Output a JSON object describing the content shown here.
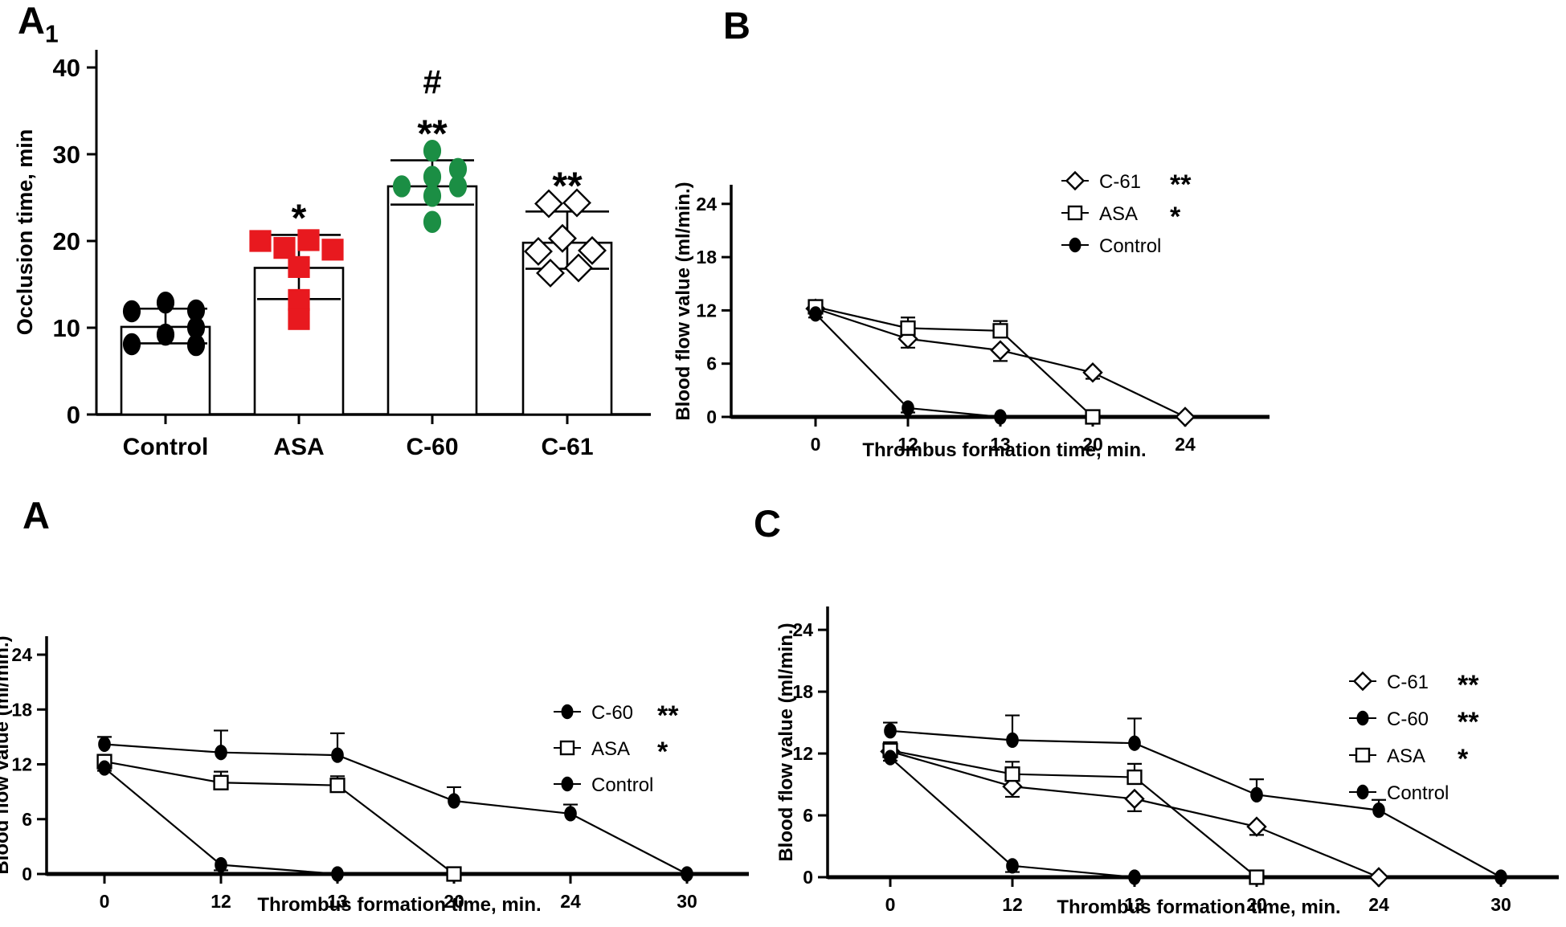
{
  "figure": {
    "background": "#ffffff",
    "panels": {
      "a1": {
        "label": "A",
        "label_sub": "1"
      },
      "b": {
        "label": "B"
      },
      "a": {
        "label": "A"
      },
      "c": {
        "label": "C"
      }
    }
  },
  "colors": {
    "axis": "#000000",
    "control": "#000000",
    "asa": "#e8191f",
    "c60": "#1b8e44",
    "c61_outline": "#000000",
    "open_fill": "#ffffff"
  },
  "chart_data": [
    {
      "id": "a1",
      "type": "bar",
      "ylabel": "Occlusion time, min",
      "yticks": [
        0,
        10,
        20,
        30,
        40
      ],
      "ylim": [
        0,
        42
      ],
      "categories": [
        "Control",
        "ASA",
        "C-60",
        "C-61"
      ],
      "bars": [
        {
          "group": "Control",
          "mean": 10.1,
          "sd_low": 8.2,
          "sd_high": 12.2,
          "marker": "ellipse",
          "fill": "#000000",
          "outline": "#000000",
          "annotations": [],
          "points_offset_value": [
            [
              0,
              12.9
            ],
            [
              -42,
              11.9
            ],
            [
              38,
              12.0
            ],
            [
              38,
              10.0
            ],
            [
              0,
              9.2
            ],
            [
              -42,
              8.1
            ],
            [
              38,
              8.0
            ]
          ]
        },
        {
          "group": "ASA",
          "mean": 16.9,
          "sd_low": 13.3,
          "sd_high": 20.7,
          "marker": "square",
          "fill": "#e8191f",
          "outline": "#e8191f",
          "annotations": [
            "*"
          ],
          "points_offset_value": [
            [
              -48,
              20.0
            ],
            [
              -18,
              19.2
            ],
            [
              12,
              20.1
            ],
            [
              42,
              19.0
            ],
            [
              0,
              17.0
            ],
            [
              0,
              13.2
            ],
            [
              0,
              11.0
            ]
          ]
        },
        {
          "group": "C-60",
          "mean": 26.3,
          "sd_low": 24.2,
          "sd_high": 29.3,
          "marker": "ellipse",
          "fill": "#1b8e44",
          "outline": "#1b8e44",
          "annotations": [
            "#",
            "**"
          ],
          "points_offset_value": [
            [
              0,
              30.4
            ],
            [
              32,
              28.3
            ],
            [
              0,
              27.4
            ],
            [
              -38,
              26.3
            ],
            [
              32,
              26.3
            ],
            [
              0,
              25.2
            ],
            [
              0,
              22.2
            ]
          ]
        },
        {
          "group": "C-61",
          "mean": 19.8,
          "sd_low": 16.8,
          "sd_high": 23.4,
          "marker": "diamond",
          "fill": "#ffffff",
          "outline": "#000000",
          "annotations": [
            "**"
          ],
          "points_offset_value": [
            [
              -23,
              24.3
            ],
            [
              12,
              24.4
            ],
            [
              -6,
              20.3
            ],
            [
              -36,
              18.8
            ],
            [
              31,
              18.9
            ],
            [
              14,
              16.9
            ],
            [
              -21,
              16.3
            ]
          ]
        }
      ]
    },
    {
      "id": "b",
      "type": "line",
      "ylabel": "Blood flow value (ml/min.)",
      "xlabel": "Thrombus formation time, min.",
      "yticks": [
        0,
        6,
        12,
        18,
        24
      ],
      "ylim": [
        0,
        26
      ],
      "xticklabels": [
        "0",
        "12",
        "13",
        "20",
        "24"
      ],
      "legend": [
        {
          "name": "C-61",
          "sig": "**"
        },
        {
          "name": "ASA",
          "sig": "*"
        },
        {
          "name": "Control",
          "sig": ""
        }
      ],
      "series": [
        {
          "name": "C-61",
          "marker": "diamond",
          "fill": "open",
          "err_dir": "down",
          "x": [
            "0",
            "12",
            "13",
            "20",
            "24"
          ],
          "y": [
            12.2,
            8.8,
            7.5,
            5.0,
            0
          ],
          "err": [
            0.5,
            1.0,
            1.2,
            0.7,
            0
          ]
        },
        {
          "name": "ASA",
          "marker": "square",
          "fill": "open",
          "err_dir": "up",
          "x": [
            "0",
            "12",
            "13",
            "20"
          ],
          "y": [
            12.4,
            10.0,
            9.7,
            0
          ],
          "err": [
            0.6,
            1.2,
            1.1,
            0
          ]
        },
        {
          "name": "Control",
          "marker": "ellipse",
          "fill": "solid",
          "err_dir": "down",
          "x": [
            "0",
            "12",
            "13"
          ],
          "y": [
            11.6,
            1.0,
            0
          ],
          "err": [
            0.4,
            0.5,
            0
          ]
        }
      ]
    },
    {
      "id": "a",
      "type": "line",
      "ylabel": "Blood flow value (ml/min.)",
      "xlabel": "Thrombus formation time, min.",
      "yticks": [
        0,
        6,
        12,
        18,
        24
      ],
      "ylim": [
        0,
        26
      ],
      "xticklabels": [
        "0",
        "12",
        "13",
        "20",
        "24",
        "30"
      ],
      "legend": [
        {
          "name": "C-60",
          "sig": "**"
        },
        {
          "name": "ASA",
          "sig": "*"
        },
        {
          "name": "Control",
          "sig": ""
        }
      ],
      "series": [
        {
          "name": "C-60",
          "marker": "ellipse",
          "fill": "solid",
          "err_dir": "up",
          "x": [
            "0",
            "12",
            "13",
            "20",
            "24",
            "30"
          ],
          "y": [
            14.2,
            13.3,
            13.0,
            8.0,
            6.6,
            0
          ],
          "err": [
            0.8,
            2.4,
            2.4,
            1.5,
            1.0,
            0
          ]
        },
        {
          "name": "ASA",
          "marker": "square",
          "fill": "open",
          "err_dir": "up",
          "x": [
            "0",
            "12",
            "13",
            "20"
          ],
          "y": [
            12.3,
            10.0,
            9.7,
            0
          ],
          "err": [
            0.7,
            1.2,
            1.0,
            0
          ]
        },
        {
          "name": "Control",
          "marker": "ellipse",
          "fill": "solid",
          "err_dir": "down",
          "x": [
            "0",
            "12",
            "13"
          ],
          "y": [
            11.6,
            1.0,
            0
          ],
          "err": [
            0.3,
            0.6,
            0
          ]
        }
      ]
    },
    {
      "id": "c",
      "type": "line",
      "ylabel": "Blood flow value (ml/min.)",
      "xlabel": "Thrombus formation time, min.",
      "yticks": [
        0,
        6,
        12,
        18,
        24
      ],
      "ylim": [
        0,
        26
      ],
      "xticklabels": [
        "0",
        "12",
        "13",
        "20",
        "24",
        "30"
      ],
      "legend": [
        {
          "name": "C-61",
          "sig": "**"
        },
        {
          "name": "C-60",
          "sig": "**"
        },
        {
          "name": "ASA",
          "sig": "*"
        },
        {
          "name": "Control",
          "sig": ""
        }
      ],
      "series": [
        {
          "name": "C-61",
          "marker": "diamond",
          "fill": "open",
          "err_dir": "down",
          "x": [
            "0",
            "12",
            "13",
            "20",
            "24"
          ],
          "y": [
            12.2,
            8.8,
            7.6,
            4.9,
            0
          ],
          "err": [
            0.4,
            1.0,
            1.2,
            0.8,
            0
          ]
        },
        {
          "name": "C-60",
          "marker": "ellipse",
          "fill": "solid",
          "err_dir": "up",
          "x": [
            "0",
            "12",
            "13",
            "20",
            "24",
            "30"
          ],
          "y": [
            14.2,
            13.3,
            13.0,
            8.0,
            6.5,
            0
          ],
          "err": [
            0.8,
            2.4,
            2.4,
            1.5,
            1.0,
            0
          ]
        },
        {
          "name": "ASA",
          "marker": "square",
          "fill": "open",
          "err_dir": "up",
          "x": [
            "0",
            "12",
            "13",
            "20"
          ],
          "y": [
            12.3,
            10.0,
            9.7,
            0
          ],
          "err": [
            0.8,
            1.2,
            1.3,
            0
          ]
        },
        {
          "name": "Control",
          "marker": "ellipse",
          "fill": "solid",
          "err_dir": "down",
          "x": [
            "0",
            "12",
            "13"
          ],
          "y": [
            11.6,
            1.1,
            0
          ],
          "err": [
            0.3,
            0.6,
            0
          ]
        }
      ]
    }
  ]
}
